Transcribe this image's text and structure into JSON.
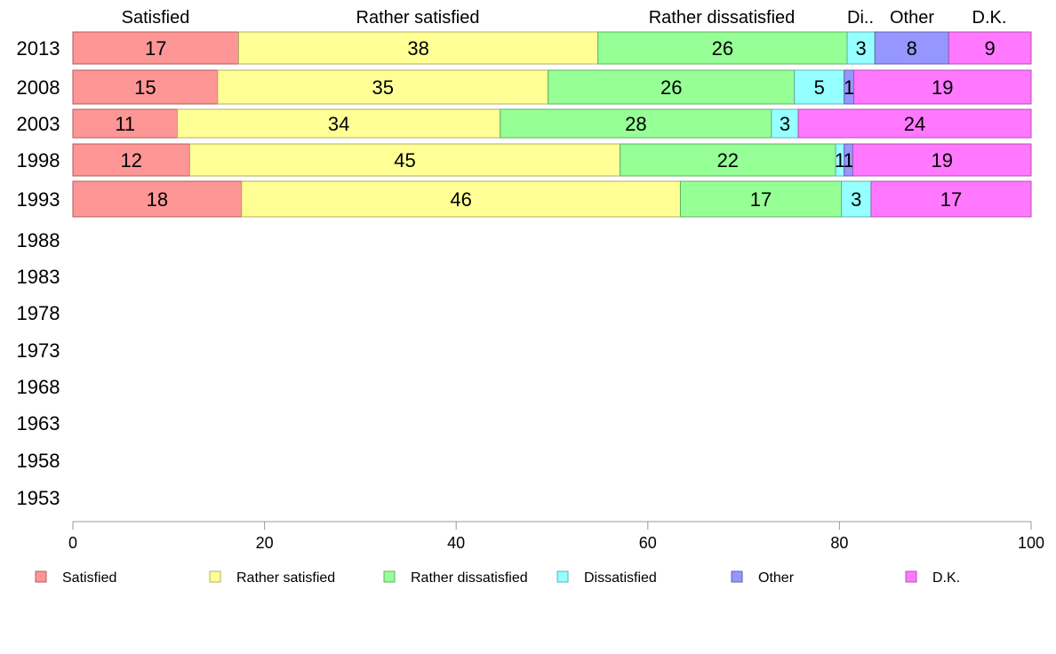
{
  "chart_data": {
    "type": "bar",
    "orientation": "horizontal",
    "stacked": true,
    "categories": [
      "2013",
      "2008",
      "2003",
      "1998",
      "1993",
      "1988",
      "1983",
      "1978",
      "1973",
      "1968",
      "1963",
      "1958",
      "1953"
    ],
    "series": [
      {
        "name": "Satisfied",
        "color": "#ff9696",
        "values": [
          17.3,
          15.1,
          10.9,
          12.2,
          17.6,
          null,
          null,
          null,
          null,
          null,
          null,
          null,
          null
        ],
        "labels": [
          "17",
          "15",
          "11",
          "12",
          "18",
          "",
          "",
          "",
          "",
          "",
          "",
          "",
          ""
        ]
      },
      {
        "name": "Rather satisfied",
        "color": "#ffff96",
        "values": [
          37.5,
          34.5,
          33.7,
          44.9,
          45.8,
          null,
          null,
          null,
          null,
          null,
          null,
          null,
          null
        ],
        "labels": [
          "38",
          "35",
          "34",
          "45",
          "46",
          "",
          "",
          "",
          "",
          "",
          "",
          "",
          ""
        ]
      },
      {
        "name": "Rather dissatisfied",
        "color": "#96ff96",
        "values": [
          26.0,
          25.7,
          28.3,
          22.5,
          16.8,
          null,
          null,
          null,
          null,
          null,
          null,
          null,
          null
        ],
        "labels": [
          "26",
          "26",
          "28",
          "22",
          "17",
          "",
          "",
          "",
          "",
          "",
          "",
          "",
          ""
        ]
      },
      {
        "name": "Dissatisfied",
        "color": "#96ffff",
        "values": [
          2.9,
          5.2,
          2.8,
          0.9,
          3.1,
          null,
          null,
          null,
          null,
          null,
          null,
          null,
          null
        ],
        "labels": [
          "3",
          "5",
          "3",
          "1",
          "3",
          "",
          "",
          "",
          "",
          "",
          "",
          "",
          ""
        ]
      },
      {
        "name": "Other",
        "color": "#9696ff",
        "values": [
          7.7,
          1.0,
          0.0,
          0.9,
          0.0,
          null,
          null,
          null,
          null,
          null,
          null,
          null,
          null
        ],
        "labels": [
          "8",
          "1",
          "",
          "1",
          "",
          "",
          "",
          "",
          "",
          "",
          "",
          "",
          ""
        ]
      },
      {
        "name": "D.K.",
        "color": "#ff78ff",
        "values": [
          8.6,
          18.5,
          24.3,
          18.6,
          16.7,
          null,
          null,
          null,
          null,
          null,
          null,
          null,
          null
        ],
        "labels": [
          "9",
          "19",
          "24",
          "19",
          "17",
          "",
          "",
          "",
          "",
          "",
          "",
          "",
          ""
        ]
      }
    ],
    "top_labels": [
      "Satisfied",
      "Rather satisfied",
      "Rather dissatisfied",
      "Di..",
      "Other",
      "D.K."
    ],
    "xlim": [
      0,
      100
    ],
    "xticks": [
      0,
      20,
      40,
      60,
      80,
      100
    ],
    "legend_position": "bottom",
    "grid": false
  }
}
